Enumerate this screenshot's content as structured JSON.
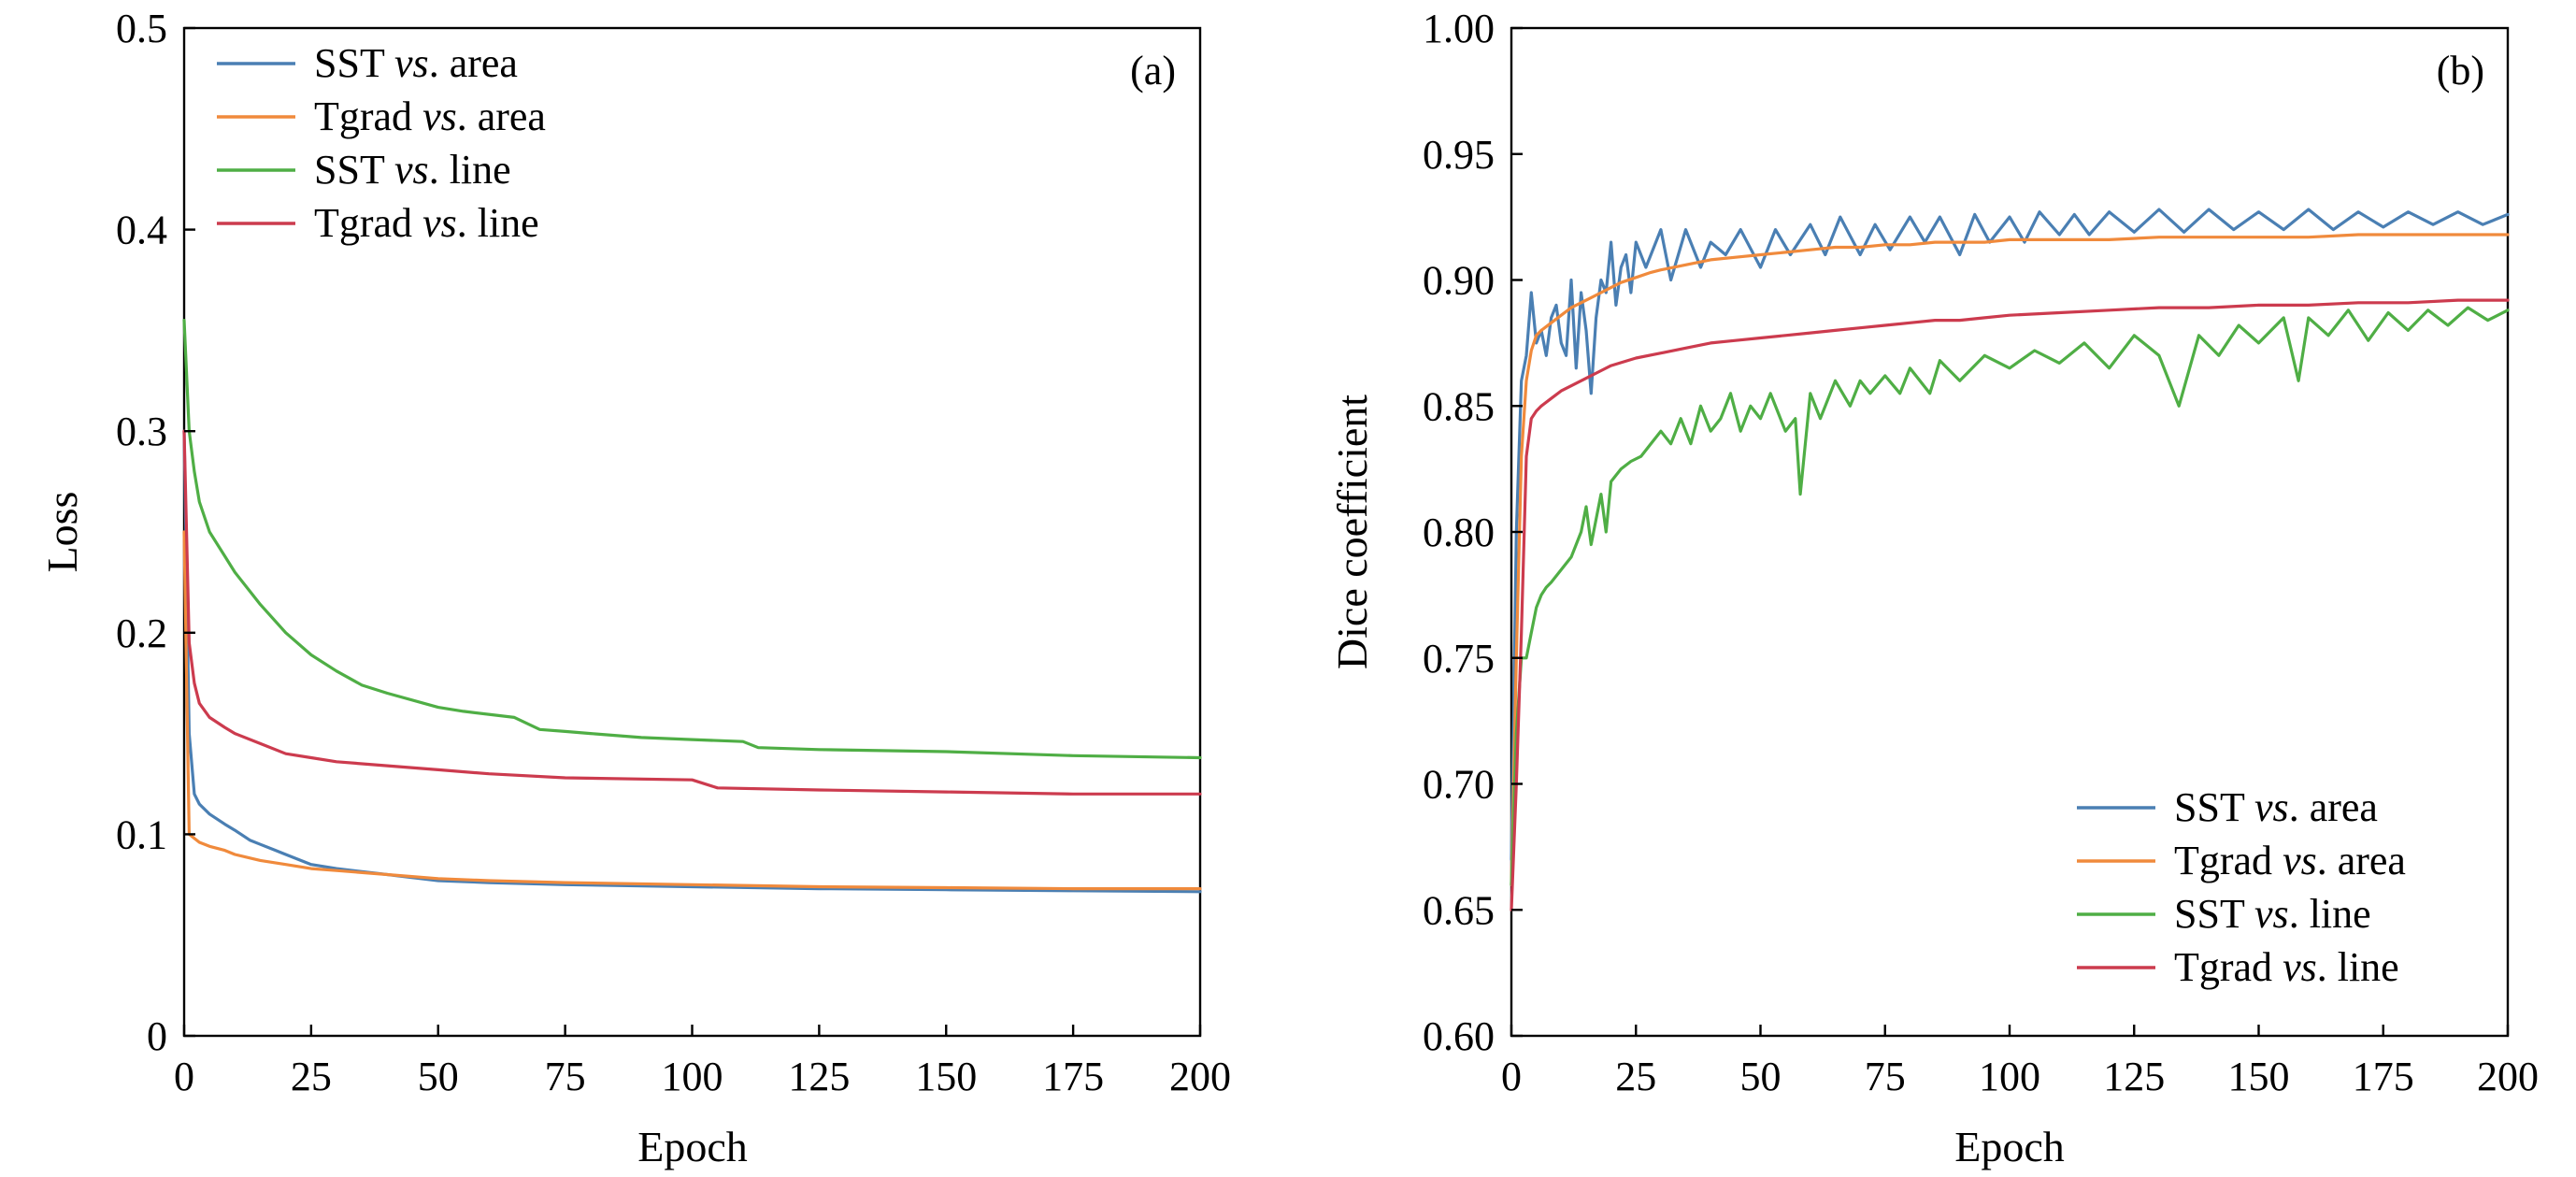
{
  "series_colors": {
    "sst_area": "#4a7fb3",
    "tgrad_area": "#f08a3c",
    "sst_line": "#4fae45",
    "tgrad_line": "#cc3b4e"
  },
  "chart_data": [
    {
      "id": "a",
      "type": "line",
      "panel_label": "(a)",
      "xlabel": "Epoch",
      "ylabel": "Loss",
      "xlim": [
        0,
        200
      ],
      "ylim": [
        0,
        0.5
      ],
      "xticks": [
        0,
        25,
        50,
        75,
        100,
        125,
        150,
        175,
        200
      ],
      "xtick_labels": [
        "0",
        "25",
        "50",
        "75",
        "100",
        "125",
        "150",
        "175",
        "200"
      ],
      "yticks": [
        0,
        0.1,
        0.2,
        0.3,
        0.4,
        0.5
      ],
      "ytick_labels": [
        "0",
        "0.1",
        "0.2",
        "0.3",
        "0.4",
        "0.5"
      ],
      "legend_position": "top-left",
      "legend": [
        {
          "key": "sst_area",
          "pre": "SST ",
          "vs": "vs",
          "post": ". area"
        },
        {
          "key": "tgrad_area",
          "pre": "Tgrad ",
          "vs": "vs",
          "post": ". area"
        },
        {
          "key": "sst_line",
          "pre": "SST ",
          "vs": "vs",
          "post": ". line"
        },
        {
          "key": "tgrad_line",
          "pre": "Tgrad ",
          "vs": "vs",
          "post": ". line"
        }
      ],
      "series": [
        {
          "key": "sst_area",
          "name": "SST vs. area",
          "x": [
            0,
            1,
            2,
            3,
            5,
            8,
            10,
            13,
            15,
            18,
            20,
            25,
            30,
            40,
            50,
            60,
            75,
            100,
            125,
            150,
            175,
            200
          ],
          "y": [
            0.3,
            0.15,
            0.12,
            0.115,
            0.11,
            0.105,
            0.102,
            0.097,
            0.095,
            0.092,
            0.09,
            0.085,
            0.083,
            0.08,
            0.077,
            0.076,
            0.075,
            0.074,
            0.073,
            0.0725,
            0.072,
            0.0715
          ]
        },
        {
          "key": "tgrad_area",
          "name": "Tgrad vs. area",
          "x": [
            0,
            1,
            2,
            3,
            5,
            8,
            10,
            15,
            20,
            25,
            30,
            40,
            50,
            60,
            75,
            100,
            125,
            150,
            175,
            200
          ],
          "y": [
            0.25,
            0.1,
            0.098,
            0.096,
            0.094,
            0.092,
            0.09,
            0.087,
            0.085,
            0.083,
            0.082,
            0.08,
            0.078,
            0.077,
            0.076,
            0.075,
            0.074,
            0.0735,
            0.073,
            0.073
          ]
        },
        {
          "key": "sst_line",
          "name": "SST vs. line",
          "x": [
            0,
            1,
            2,
            3,
            5,
            8,
            10,
            15,
            20,
            25,
            30,
            35,
            40,
            50,
            55,
            65,
            70,
            75,
            80,
            90,
            100,
            110,
            113,
            125,
            150,
            175,
            200
          ],
          "y": [
            0.355,
            0.3,
            0.28,
            0.265,
            0.25,
            0.238,
            0.23,
            0.214,
            0.2,
            0.189,
            0.181,
            0.174,
            0.17,
            0.163,
            0.161,
            0.158,
            0.152,
            0.151,
            0.15,
            0.148,
            0.147,
            0.146,
            0.143,
            0.142,
            0.141,
            0.139,
            0.138
          ]
        },
        {
          "key": "tgrad_line",
          "name": "Tgrad vs. line",
          "x": [
            0,
            1,
            2,
            3,
            5,
            8,
            10,
            15,
            20,
            25,
            30,
            40,
            50,
            60,
            75,
            100,
            105,
            125,
            150,
            175,
            200
          ],
          "y": [
            0.3,
            0.195,
            0.175,
            0.165,
            0.158,
            0.153,
            0.15,
            0.145,
            0.14,
            0.138,
            0.136,
            0.134,
            0.132,
            0.13,
            0.128,
            0.127,
            0.123,
            0.122,
            0.121,
            0.12,
            0.12
          ]
        }
      ]
    },
    {
      "id": "b",
      "type": "line",
      "panel_label": "(b)",
      "xlabel": "Epoch",
      "ylabel": "Dice coefficient",
      "xlim": [
        0,
        200
      ],
      "ylim": [
        0.6,
        1.0
      ],
      "xticks": [
        0,
        25,
        50,
        75,
        100,
        125,
        150,
        175,
        200
      ],
      "xtick_labels": [
        "0",
        "25",
        "50",
        "75",
        "100",
        "125",
        "150",
        "175",
        "200"
      ],
      "yticks": [
        0.6,
        0.65,
        0.7,
        0.75,
        0.8,
        0.85,
        0.9,
        0.95,
        1.0
      ],
      "ytick_labels": [
        "0.60",
        "0.65",
        "0.70",
        "0.75",
        "0.80",
        "0.85",
        "0.90",
        "0.95",
        "1.00"
      ],
      "legend_position": "bottom-right",
      "legend": [
        {
          "key": "sst_area",
          "pre": "SST ",
          "vs": "vs",
          "post": ". area"
        },
        {
          "key": "tgrad_area",
          "pre": "Tgrad ",
          "vs": "vs",
          "post": ". area"
        },
        {
          "key": "sst_line",
          "pre": "SST ",
          "vs": "vs",
          "post": ". line"
        },
        {
          "key": "tgrad_line",
          "pre": "Tgrad ",
          "vs": "vs",
          "post": ". line"
        }
      ],
      "series": [
        {
          "key": "sst_area",
          "name": "SST vs. area",
          "x": [
            0,
            1,
            2,
            3,
            4,
            5,
            6,
            7,
            8,
            9,
            10,
            11,
            12,
            13,
            14,
            15,
            16,
            17,
            18,
            19,
            20,
            21,
            22,
            23,
            24,
            25,
            27,
            30,
            32,
            35,
            38,
            40,
            43,
            46,
            50,
            53,
            56,
            60,
            63,
            66,
            70,
            73,
            76,
            80,
            83,
            86,
            90,
            93,
            96,
            100,
            103,
            106,
            110,
            113,
            116,
            120,
            125,
            130,
            135,
            140,
            145,
            150,
            155,
            160,
            165,
            170,
            175,
            180,
            185,
            190,
            195,
            200
          ],
          "y": [
            0.67,
            0.8,
            0.86,
            0.87,
            0.895,
            0.875,
            0.88,
            0.87,
            0.885,
            0.89,
            0.875,
            0.87,
            0.9,
            0.865,
            0.895,
            0.88,
            0.855,
            0.885,
            0.9,
            0.895,
            0.915,
            0.89,
            0.905,
            0.91,
            0.895,
            0.915,
            0.905,
            0.92,
            0.9,
            0.92,
            0.905,
            0.915,
            0.91,
            0.92,
            0.905,
            0.92,
            0.91,
            0.922,
            0.91,
            0.925,
            0.91,
            0.922,
            0.912,
            0.925,
            0.915,
            0.925,
            0.91,
            0.926,
            0.915,
            0.925,
            0.915,
            0.927,
            0.918,
            0.926,
            0.918,
            0.927,
            0.919,
            0.928,
            0.919,
            0.928,
            0.92,
            0.927,
            0.92,
            0.928,
            0.92,
            0.927,
            0.921,
            0.927,
            0.922,
            0.927,
            0.922,
            0.926
          ]
        },
        {
          "key": "tgrad_area",
          "name": "Tgrad vs. area",
          "x": [
            0,
            1,
            2,
            3,
            4,
            5,
            6,
            8,
            10,
            12,
            14,
            16,
            18,
            20,
            22,
            25,
            28,
            30,
            35,
            40,
            45,
            50,
            55,
            60,
            65,
            70,
            75,
            80,
            85,
            90,
            95,
            100,
            110,
            120,
            130,
            140,
            150,
            160,
            170,
            180,
            190,
            200
          ],
          "y": [
            0.66,
            0.75,
            0.83,
            0.86,
            0.872,
            0.878,
            0.88,
            0.883,
            0.886,
            0.889,
            0.891,
            0.893,
            0.895,
            0.897,
            0.899,
            0.901,
            0.903,
            0.904,
            0.906,
            0.908,
            0.909,
            0.91,
            0.911,
            0.912,
            0.913,
            0.913,
            0.914,
            0.914,
            0.915,
            0.915,
            0.915,
            0.916,
            0.916,
            0.916,
            0.917,
            0.917,
            0.917,
            0.917,
            0.918,
            0.918,
            0.918,
            0.918
          ]
        },
        {
          "key": "sst_line",
          "name": "SST vs. line",
          "x": [
            0,
            1,
            2,
            3,
            4,
            5,
            6,
            7,
            8,
            10,
            12,
            14,
            15,
            16,
            17,
            18,
            19,
            20,
            22,
            24,
            26,
            28,
            30,
            32,
            34,
            36,
            38,
            40,
            42,
            44,
            46,
            48,
            50,
            52,
            55,
            57,
            58,
            60,
            62,
            65,
            68,
            70,
            72,
            75,
            78,
            80,
            84,
            86,
            90,
            95,
            100,
            105,
            110,
            115,
            120,
            125,
            130,
            134,
            138,
            142,
            146,
            150,
            155,
            158,
            160,
            164,
            168,
            172,
            176,
            180,
            184,
            188,
            192,
            196,
            200
          ],
          "y": [
            0.66,
            0.72,
            0.75,
            0.75,
            0.76,
            0.77,
            0.775,
            0.778,
            0.78,
            0.785,
            0.79,
            0.8,
            0.81,
            0.795,
            0.805,
            0.815,
            0.8,
            0.82,
            0.825,
            0.828,
            0.83,
            0.835,
            0.84,
            0.835,
            0.845,
            0.835,
            0.85,
            0.84,
            0.845,
            0.855,
            0.84,
            0.85,
            0.845,
            0.855,
            0.84,
            0.845,
            0.815,
            0.855,
            0.845,
            0.86,
            0.85,
            0.86,
            0.855,
            0.862,
            0.855,
            0.865,
            0.855,
            0.868,
            0.86,
            0.87,
            0.865,
            0.872,
            0.867,
            0.875,
            0.865,
            0.878,
            0.87,
            0.85,
            0.878,
            0.87,
            0.882,
            0.875,
            0.885,
            0.86,
            0.885,
            0.878,
            0.888,
            0.876,
            0.887,
            0.88,
            0.888,
            0.882,
            0.889,
            0.884,
            0.888
          ]
        },
        {
          "key": "tgrad_line",
          "name": "Tgrad vs. line",
          "x": [
            0,
            1,
            2,
            3,
            4,
            5,
            6,
            8,
            10,
            12,
            15,
            18,
            20,
            25,
            30,
            35,
            40,
            45,
            50,
            55,
            60,
            65,
            70,
            75,
            80,
            85,
            90,
            95,
            100,
            110,
            120,
            130,
            140,
            150,
            160,
            170,
            180,
            190,
            200
          ],
          "y": [
            0.65,
            0.7,
            0.76,
            0.83,
            0.845,
            0.848,
            0.85,
            0.853,
            0.856,
            0.858,
            0.861,
            0.864,
            0.866,
            0.869,
            0.871,
            0.873,
            0.875,
            0.876,
            0.877,
            0.878,
            0.879,
            0.88,
            0.881,
            0.882,
            0.883,
            0.884,
            0.884,
            0.885,
            0.886,
            0.887,
            0.888,
            0.889,
            0.889,
            0.89,
            0.89,
            0.891,
            0.891,
            0.892,
            0.892
          ]
        }
      ]
    }
  ]
}
